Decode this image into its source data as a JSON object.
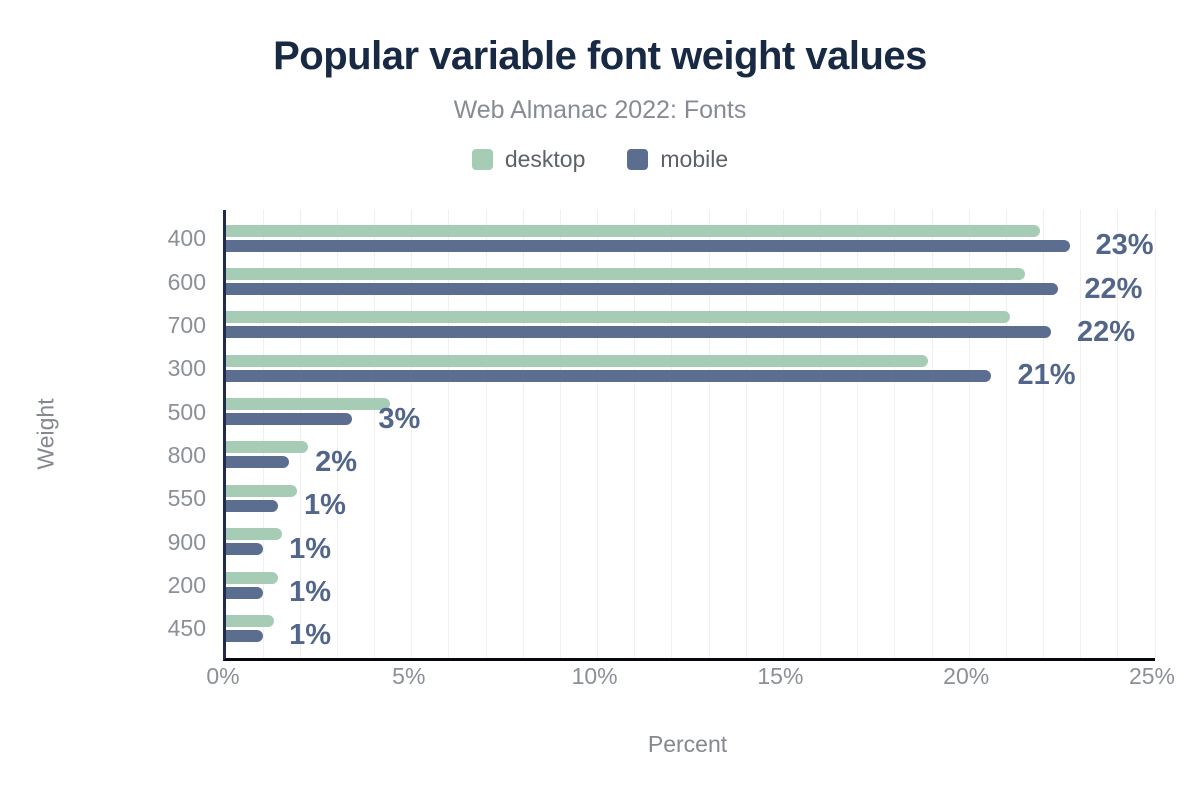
{
  "figure": {
    "title": "Popular variable font weight values",
    "subtitle": "Web Almanac 2022: Fonts"
  },
  "chart_data": {
    "type": "bar",
    "orientation": "horizontal",
    "title": "Popular variable font weight values",
    "subtitle": "Web Almanac 2022: Fonts",
    "xlabel": "Percent",
    "ylabel": "Weight",
    "xlim": [
      0,
      25
    ],
    "grid": true,
    "minor_grid_step_percent": 1,
    "legend_position": "top",
    "x_ticks": [
      {
        "value": 0,
        "label": "0%"
      },
      {
        "value": 5,
        "label": "5%"
      },
      {
        "value": 10,
        "label": "10%"
      },
      {
        "value": 15,
        "label": "15%"
      },
      {
        "value": 20,
        "label": "20%"
      },
      {
        "value": 25,
        "label": "25%"
      }
    ],
    "categories": [
      "400",
      "600",
      "700",
      "300",
      "500",
      "800",
      "550",
      "900",
      "200",
      "450"
    ],
    "series": [
      {
        "name": "desktop",
        "color": "#a6ccb6",
        "values": [
          21.9,
          21.5,
          21.1,
          18.9,
          4.4,
          2.2,
          1.9,
          1.5,
          1.4,
          1.3
        ]
      },
      {
        "name": "mobile",
        "color": "#5b6e90",
        "values": [
          22.7,
          22.4,
          22.2,
          20.6,
          3.4,
          1.7,
          1.4,
          1.0,
          1.0,
          1.0
        ]
      }
    ],
    "bar_labels": [
      "23%",
      "22%",
      "22%",
      "21%",
      "3%",
      "2%",
      "1%",
      "1%",
      "1%",
      "1%"
    ]
  },
  "colors": {
    "background": "#ffffff",
    "title_text": "#182944",
    "subtitle_text": "#878c94",
    "axis_text": "#8b9097",
    "legend_text": "#5d6269",
    "grid_line": "#efefef",
    "y_axis_line": "#1e2b4a",
    "x_axis_line": "#06080f",
    "bar_value_text": "#52658a",
    "desktop_bar": "#a6ccb6",
    "mobile_bar": "#5b6e90"
  }
}
